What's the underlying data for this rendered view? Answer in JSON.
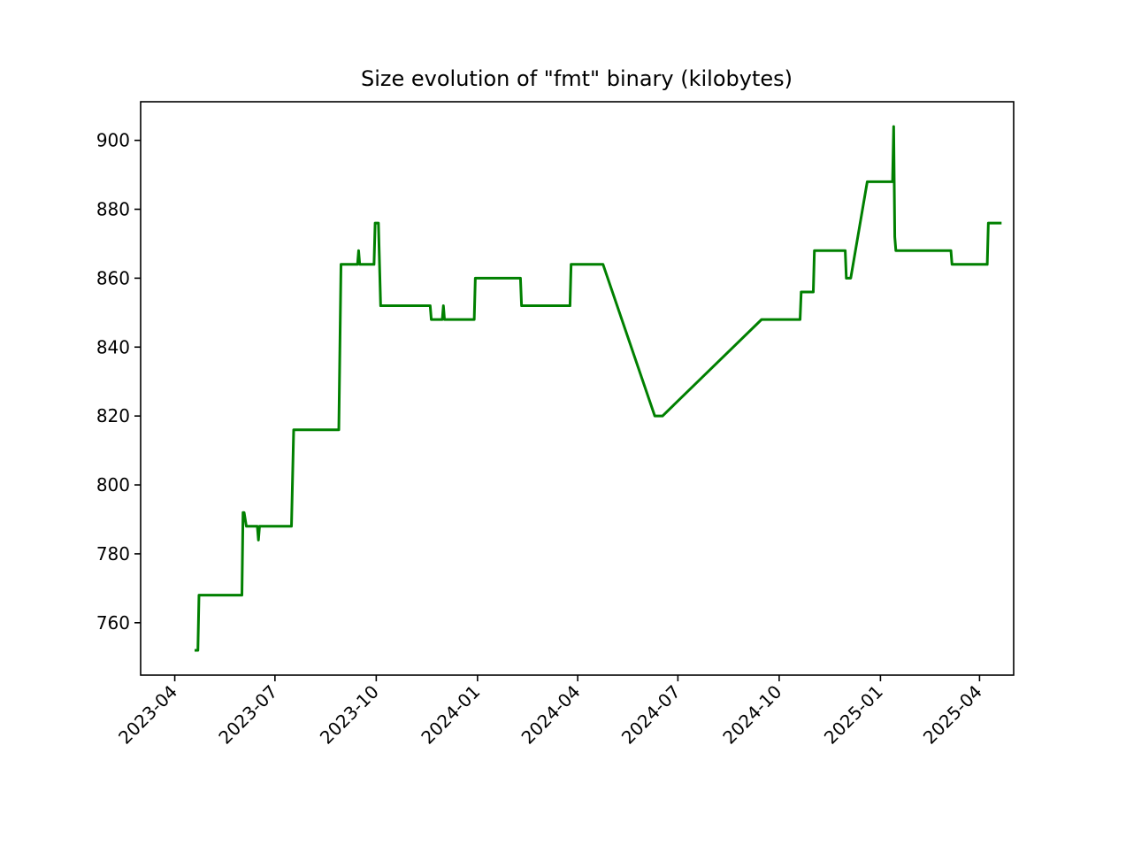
{
  "chart_data": {
    "type": "line",
    "title": "Size evolution of \"fmt\" binary (kilobytes)",
    "xlabel": "",
    "ylabel": "",
    "x_axis_type": "date",
    "xlim": [
      "2023-03-01",
      "2025-05-02"
    ],
    "ylim": [
      744.8,
      911.2
    ],
    "x_ticks": [
      "2023-04",
      "2023-07",
      "2023-10",
      "2024-01",
      "2024-04",
      "2024-07",
      "2024-10",
      "2025-01",
      "2025-04"
    ],
    "y_ticks": [
      760,
      780,
      800,
      820,
      840,
      860,
      880,
      900
    ],
    "grid": false,
    "legend": "none",
    "series": [
      {
        "color": "#008000",
        "points": [
          [
            "2023-04-19",
            752
          ],
          [
            "2023-04-22",
            752
          ],
          [
            "2023-04-23",
            768
          ],
          [
            "2023-06-01",
            768
          ],
          [
            "2023-06-02",
            792
          ],
          [
            "2023-06-03",
            792
          ],
          [
            "2023-06-05",
            788
          ],
          [
            "2023-06-15",
            788
          ],
          [
            "2023-06-16",
            784
          ],
          [
            "2023-06-17",
            788
          ],
          [
            "2023-07-16",
            788
          ],
          [
            "2023-07-18",
            816
          ],
          [
            "2023-08-28",
            816
          ],
          [
            "2023-08-30",
            864
          ],
          [
            "2023-09-14",
            864
          ],
          [
            "2023-09-15",
            868
          ],
          [
            "2023-09-16",
            864
          ],
          [
            "2023-09-29",
            864
          ],
          [
            "2023-09-30",
            876
          ],
          [
            "2023-10-03",
            876
          ],
          [
            "2023-10-05",
            852
          ],
          [
            "2023-11-19",
            852
          ],
          [
            "2023-11-20",
            848
          ],
          [
            "2023-11-30",
            848
          ],
          [
            "2023-12-01",
            852
          ],
          [
            "2023-12-02",
            848
          ],
          [
            "2023-12-29",
            848
          ],
          [
            "2023-12-30",
            860
          ],
          [
            "2024-02-09",
            860
          ],
          [
            "2024-02-10",
            852
          ],
          [
            "2024-03-25",
            852
          ],
          [
            "2024-03-26",
            864
          ],
          [
            "2024-04-24",
            864
          ],
          [
            "2024-06-10",
            820
          ],
          [
            "2024-06-17",
            820
          ],
          [
            "2024-09-15",
            848
          ],
          [
            "2024-10-20",
            848
          ],
          [
            "2024-10-21",
            856
          ],
          [
            "2024-11-01",
            856
          ],
          [
            "2024-11-02",
            868
          ],
          [
            "2024-11-30",
            868
          ],
          [
            "2024-12-01",
            860
          ],
          [
            "2024-12-05",
            860
          ],
          [
            "2024-12-20",
            888
          ],
          [
            "2025-01-12",
            888
          ],
          [
            "2025-01-13",
            904
          ],
          [
            "2025-01-14",
            872
          ],
          [
            "2025-01-15",
            868
          ],
          [
            "2025-03-06",
            868
          ],
          [
            "2025-03-07",
            864
          ],
          [
            "2025-04-08",
            864
          ],
          [
            "2025-04-09",
            876
          ],
          [
            "2025-04-21",
            876
          ]
        ]
      }
    ]
  }
}
